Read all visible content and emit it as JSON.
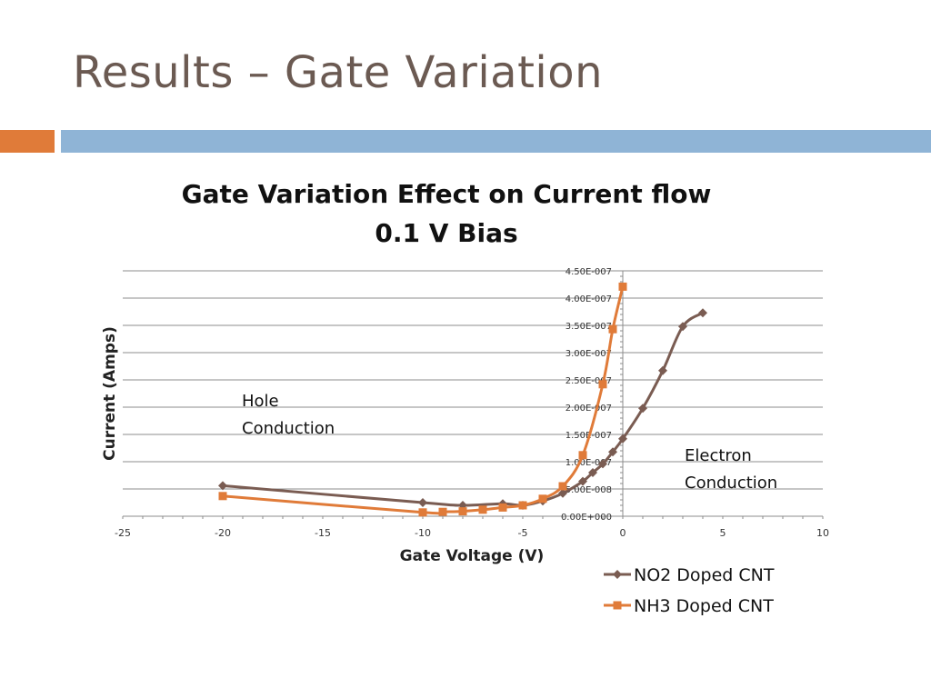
{
  "slide": {
    "title": "Results – Gate Variation"
  },
  "colors": {
    "accent_orange": "#e07b39",
    "accent_blue": "#8fb4d6",
    "no2_series": "#7a5c52",
    "nh3_series": "#e07b39",
    "gridline": "#8c8c8c"
  },
  "chart_data": {
    "type": "line",
    "title_line1": "Gate Variation Effect on Current flow",
    "title_line2": "0.1 V Bias",
    "xlabel": "Gate Voltage (V)",
    "ylabel": "Current (Amps)",
    "xlim": [
      -25,
      10
    ],
    "ylim": [
      0,
      4.5e-07
    ],
    "x_ticks": [
      -25,
      -20,
      -15,
      -10,
      -5,
      0,
      5,
      10
    ],
    "y_ticks": [
      0,
      5e-08,
      1e-07,
      1.5e-07,
      2e-07,
      2.5e-07,
      3e-07,
      3.5e-07,
      4e-07,
      4.5e-07
    ],
    "x_tick_labels": [
      "-25",
      "-20",
      "-15",
      "-10",
      "-5",
      "0",
      "5",
      "10"
    ],
    "y_tick_labels": [
      "0.00E+000",
      "5.00E-008",
      "1.00E-007",
      "1.50E-007",
      "2.00E-007",
      "2.50E-007",
      "3.00E-007",
      "3.50E-007",
      "4.00E-007",
      "4.50E-007"
    ],
    "grid": "horizontal",
    "legend_position": "bottom-right",
    "annotations": [
      {
        "lines": [
          "Hole",
          "Conduction"
        ],
        "anchor": "left-middle"
      },
      {
        "lines": [
          "Electron",
          "Conduction"
        ],
        "anchor": "right-middle"
      }
    ],
    "series": [
      {
        "name": "NO2 Doped CNT",
        "marker": "diamond",
        "x": [
          -20,
          -10,
          -8,
          -6,
          -5,
          -4,
          -3,
          -2,
          -1.5,
          -1,
          -0.5,
          0,
          1,
          2,
          3,
          4
        ],
        "y": [
          5.6e-08,
          2.5e-08,
          2e-08,
          2.3e-08,
          2e-08,
          2.8e-08,
          4.2e-08,
          6.4e-08,
          8e-08,
          9.6e-08,
          1.18e-07,
          1.42e-07,
          1.98e-07,
          2.67e-07,
          3.48e-07,
          3.73e-07
        ]
      },
      {
        "name": "NH3 Doped CNT",
        "marker": "square",
        "x": [
          -20,
          -10,
          -9,
          -8,
          -7,
          -6,
          -5,
          -4,
          -3,
          -2,
          -1,
          -0.5,
          0
        ],
        "y": [
          3.7e-08,
          7e-09,
          8e-09,
          9e-09,
          1.2e-08,
          1.6e-08,
          2e-08,
          3.2e-08,
          5.5e-08,
          1.12e-07,
          2.42e-07,
          3.43e-07,
          4.21e-07
        ]
      }
    ]
  }
}
